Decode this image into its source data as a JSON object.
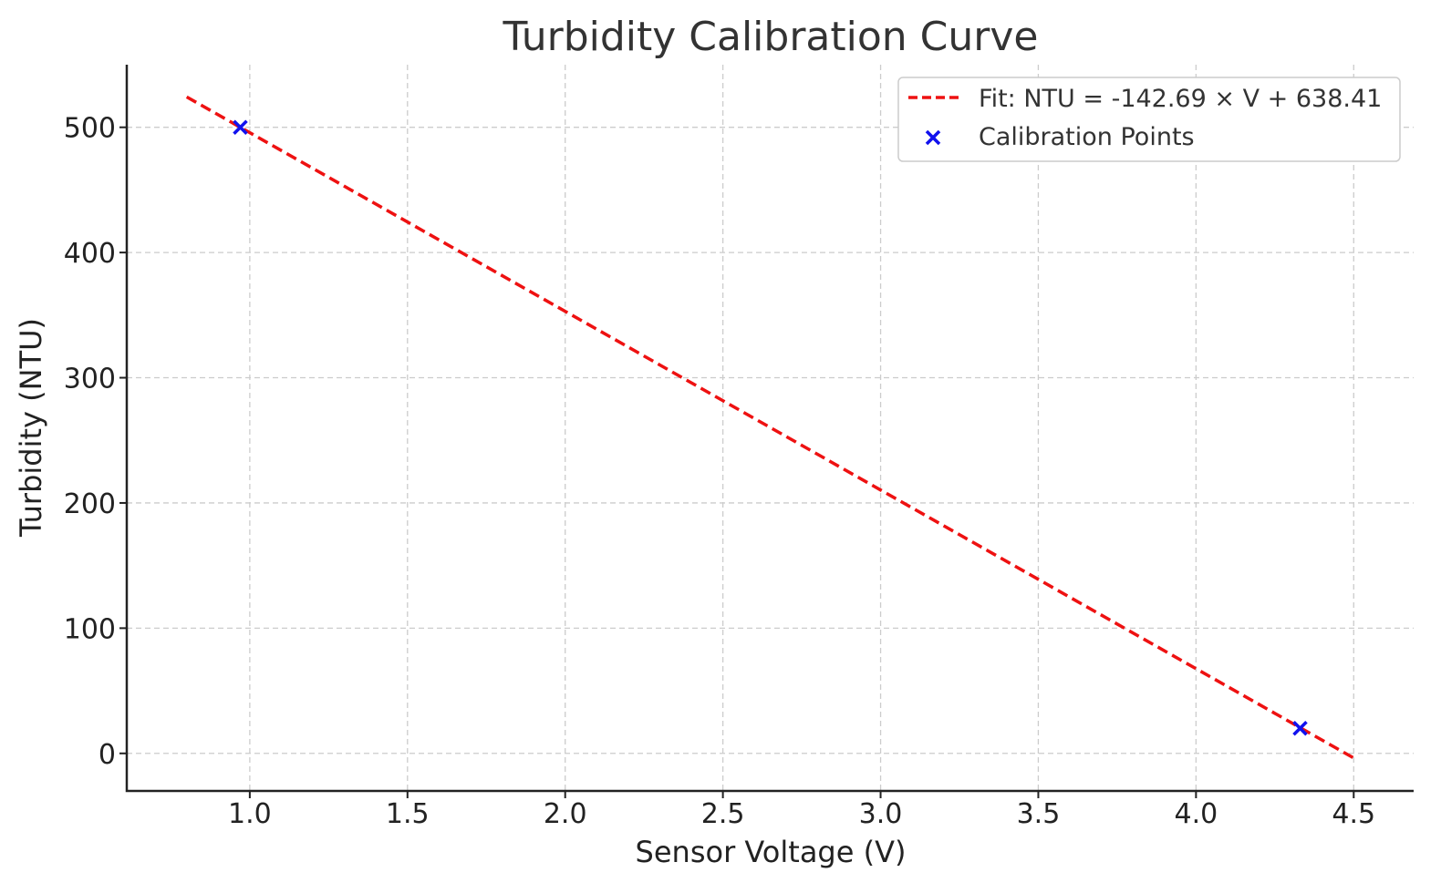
{
  "chart_data": {
    "type": "scatter",
    "title": "Turbidity Calibration Curve",
    "xlabel": "Sensor Voltage (V)",
    "ylabel": "Turbidity (NTU)",
    "xlim": [
      0.61,
      4.69
    ],
    "ylim": [
      -30,
      550
    ],
    "xticks": [
      1.0,
      1.5,
      2.0,
      2.5,
      3.0,
      3.5,
      4.0,
      4.5
    ],
    "xtick_labels": [
      "1.0",
      "1.5",
      "2.0",
      "2.5",
      "3.0",
      "3.5",
      "4.0",
      "4.5"
    ],
    "yticks": [
      0,
      100,
      200,
      300,
      400,
      500
    ],
    "ytick_labels": [
      "0",
      "100",
      "200",
      "300",
      "400",
      "500"
    ],
    "grid": true,
    "legend_position": "top-right",
    "series": [
      {
        "name": "Fit: NTU = -142.69 × V + 638.41",
        "kind": "line",
        "style": "dashed",
        "color": "#ee1111",
        "slope": -142.69,
        "intercept": 638.41,
        "x_range": [
          0.8,
          4.5
        ]
      },
      {
        "name": "Calibration Points",
        "kind": "scatter",
        "marker": "x",
        "color": "#1111ee",
        "points": [
          {
            "x": 0.97,
            "y": 500
          },
          {
            "x": 4.33,
            "y": 20
          }
        ]
      }
    ]
  }
}
